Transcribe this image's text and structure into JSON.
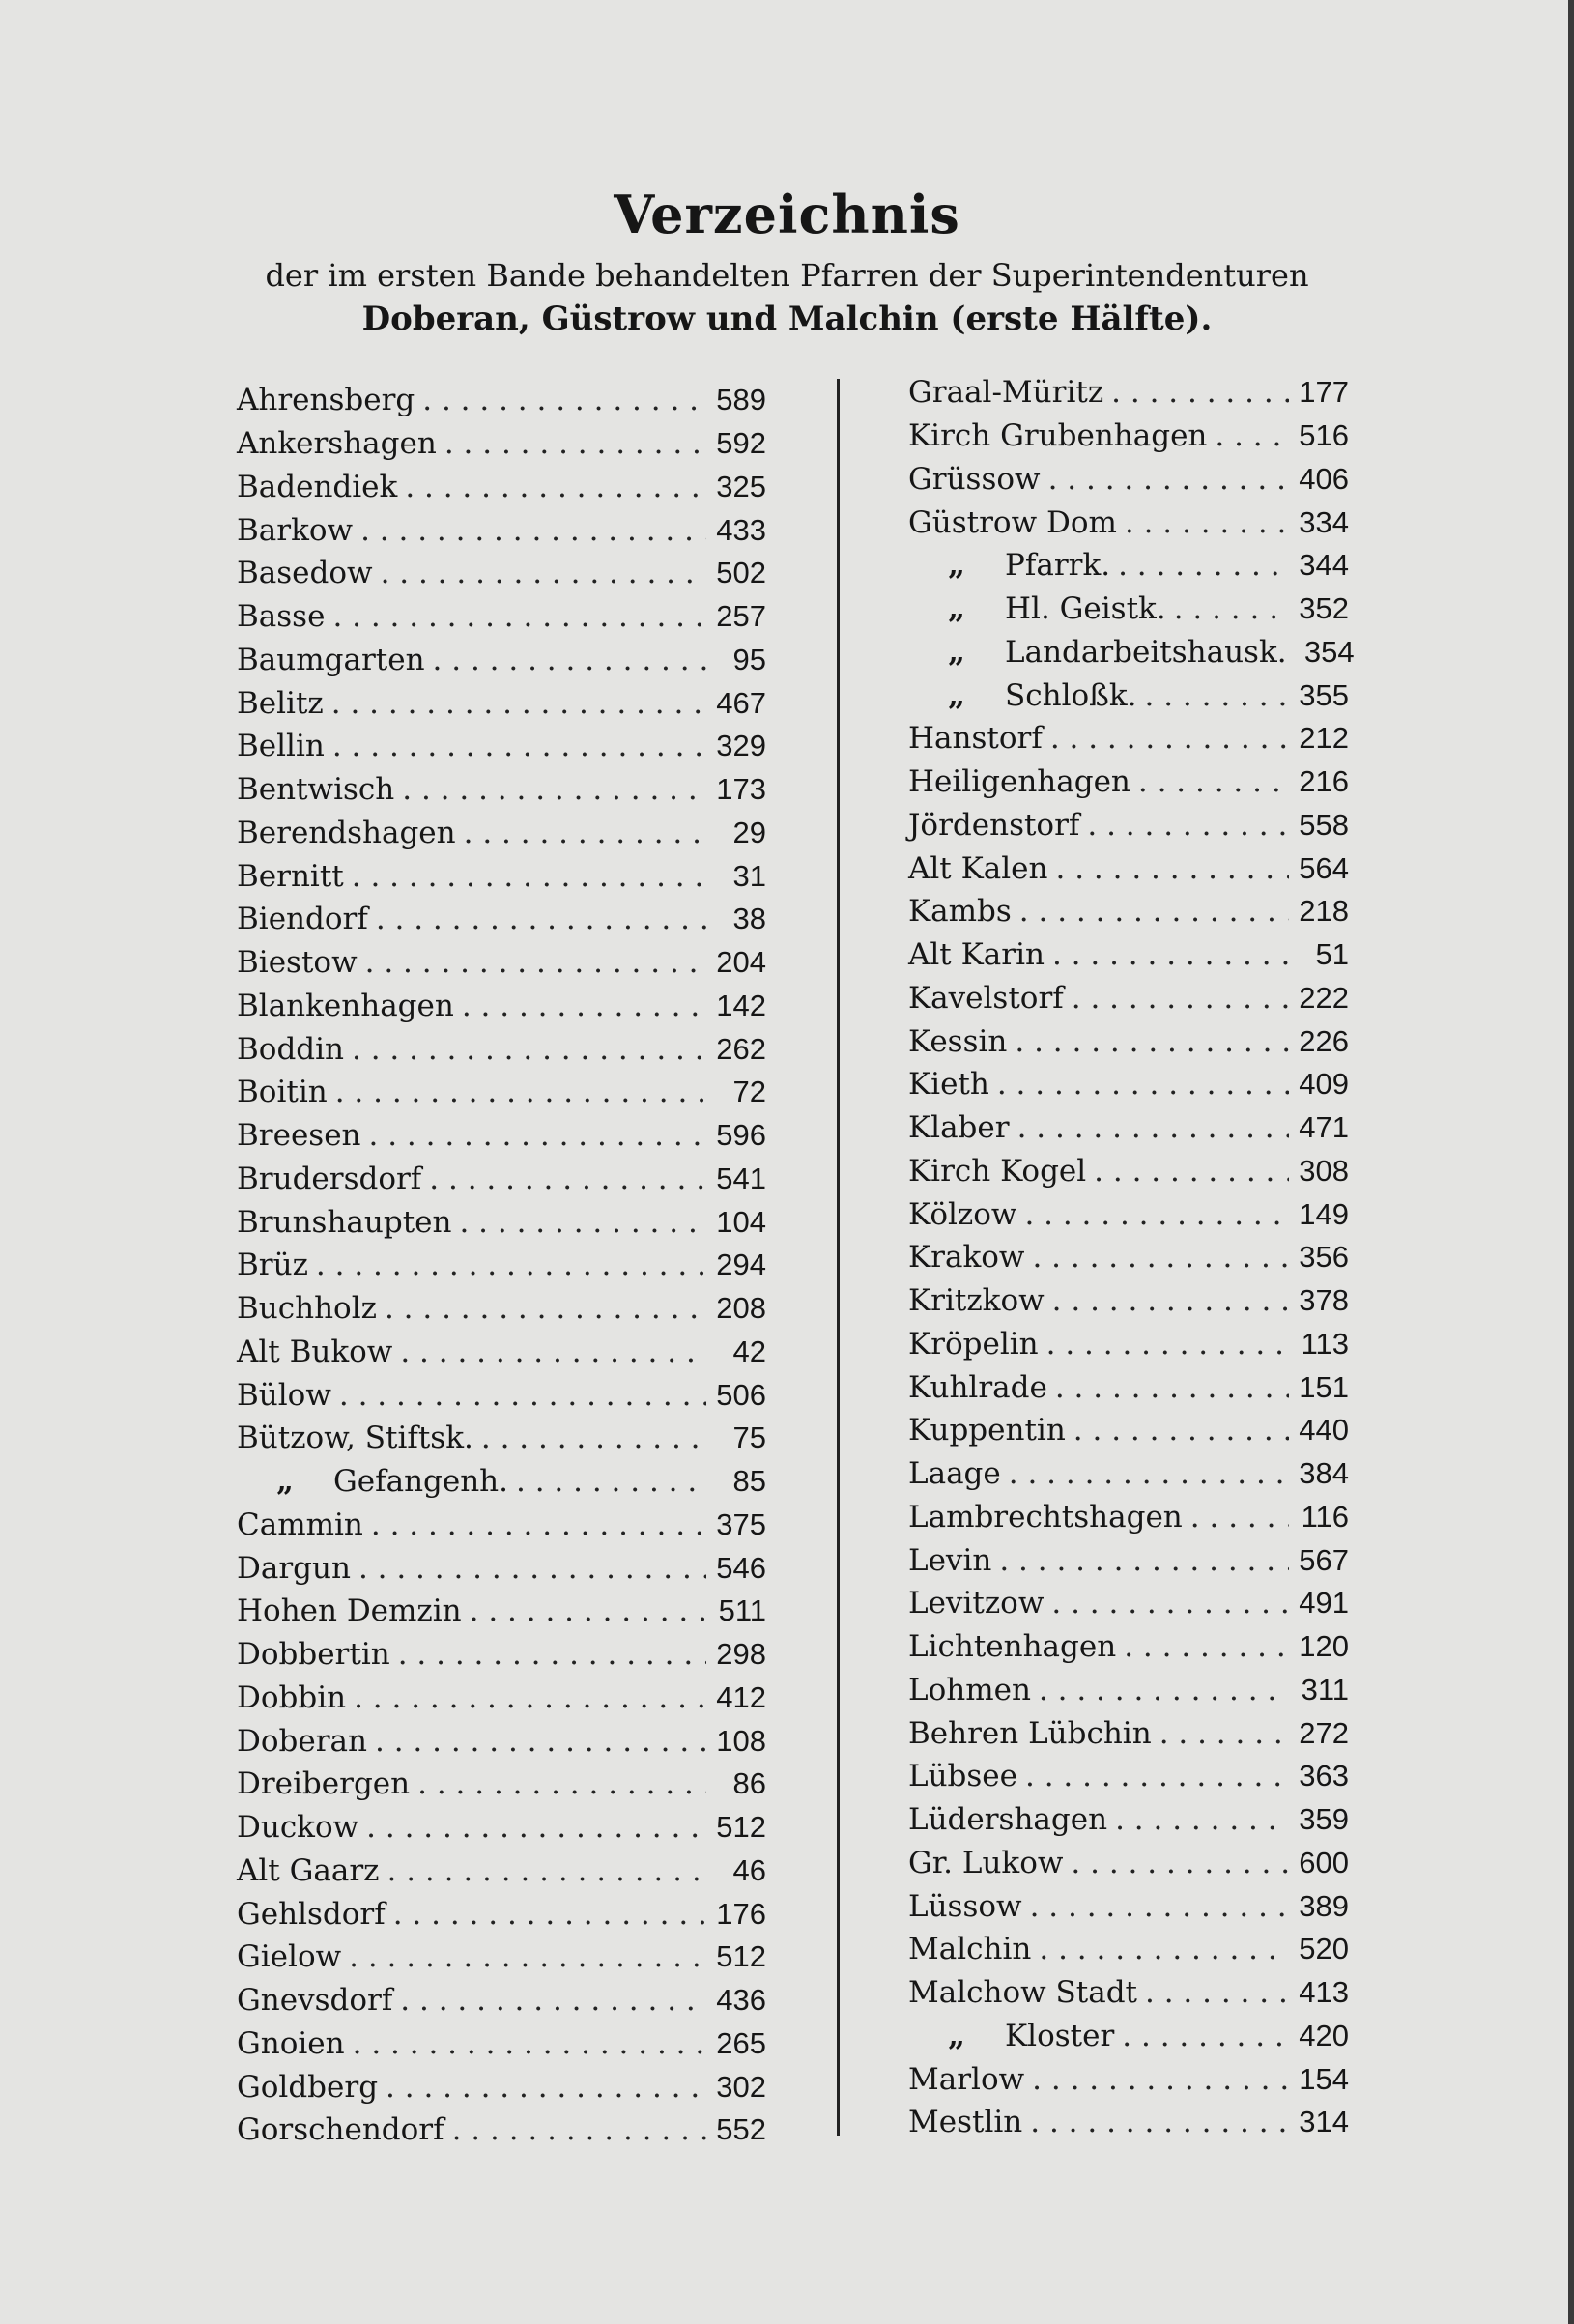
{
  "title": "Verzeichnis",
  "subtitle_line1": "der im ersten Bande behandelten Pfarren der Superintendenturen",
  "subtitle_line2": "Doberan, Güstrow und Malchin (erste Hälfte).",
  "ditto_mark": "„",
  "left_column": [
    {
      "name": "Ahrensberg",
      "page": "589"
    },
    {
      "name": "Ankershagen",
      "page": "592"
    },
    {
      "name": "Badendiek",
      "page": "325"
    },
    {
      "name": "Barkow",
      "page": "433"
    },
    {
      "name": "Basedow",
      "page": "502"
    },
    {
      "name": "Basse",
      "page": "257"
    },
    {
      "name": "Baumgarten",
      "page": "95"
    },
    {
      "name": "Belitz",
      "page": "467"
    },
    {
      "name": "Bellin",
      "page": "329"
    },
    {
      "name": "Bentwisch",
      "page": "173"
    },
    {
      "name": "Berendshagen",
      "page": "29"
    },
    {
      "name": "Bernitt",
      "page": "31"
    },
    {
      "name": "Biendorf",
      "page": "38"
    },
    {
      "name": "Biestow",
      "page": "204"
    },
    {
      "name": "Blankenhagen",
      "page": "142"
    },
    {
      "name": "Boddin",
      "page": "262"
    },
    {
      "name": "Boitin",
      "page": "72"
    },
    {
      "name": "Breesen",
      "page": "596"
    },
    {
      "name": "Brudersdorf",
      "page": "541"
    },
    {
      "name": "Brunshaupten",
      "page": "104"
    },
    {
      "name": "Brüz",
      "page": "294"
    },
    {
      "name": "Buchholz",
      "page": "208"
    },
    {
      "name": "Alt Bukow",
      "page": "42"
    },
    {
      "name": "Bülow",
      "page": "506"
    },
    {
      "name": "Bützow, Stiftsk.",
      "page": "75"
    },
    {
      "name": "Gefangenh.",
      "page": "85",
      "ditto": true
    },
    {
      "name": "Cammin",
      "page": "375"
    },
    {
      "name": "Dargun",
      "page": "546"
    },
    {
      "name": "Hohen Demzin",
      "page": "511"
    },
    {
      "name": "Dobbertin",
      "page": "298"
    },
    {
      "name": "Dobbin",
      "page": "412"
    },
    {
      "name": "Doberan",
      "page": "108"
    },
    {
      "name": "Dreibergen",
      "page": "86"
    },
    {
      "name": "Duckow",
      "page": "512"
    },
    {
      "name": "Alt Gaarz",
      "page": "46"
    },
    {
      "name": "Gehlsdorf",
      "page": "176"
    },
    {
      "name": "Gielow",
      "page": "512"
    },
    {
      "name": "Gnevsdorf",
      "page": "436"
    },
    {
      "name": "Gnoien",
      "page": "265"
    },
    {
      "name": "Goldberg",
      "page": "302"
    },
    {
      "name": "Gorschendorf",
      "page": "552"
    }
  ],
  "right_column": [
    {
      "name": "Graal-Müritz",
      "page": "177"
    },
    {
      "name": "Kirch Grubenhagen",
      "page": "516"
    },
    {
      "name": "Grüssow",
      "page": "406"
    },
    {
      "name": "Güstrow Dom",
      "page": "334"
    },
    {
      "name": "Pfarrk.",
      "page": "344",
      "ditto": true
    },
    {
      "name": "Hl. Geistk.",
      "page": "352",
      "ditto": true
    },
    {
      "name": "Landarbeitshausk.",
      "page": "354",
      "ditto": true
    },
    {
      "name": "Schloßk.",
      "page": "355",
      "ditto": true
    },
    {
      "name": "Hanstorf",
      "page": "212"
    },
    {
      "name": "Heiligenhagen",
      "page": "216"
    },
    {
      "name": "Jördenstorf",
      "page": "558"
    },
    {
      "name": "Alt Kalen",
      "page": "564"
    },
    {
      "name": "Kambs",
      "page": "218"
    },
    {
      "name": "Alt Karin",
      "page": "51"
    },
    {
      "name": "Kavelstorf",
      "page": "222"
    },
    {
      "name": "Kessin",
      "page": "226"
    },
    {
      "name": "Kieth",
      "page": "409"
    },
    {
      "name": "Klaber",
      "page": "471"
    },
    {
      "name": "Kirch Kogel",
      "page": "308"
    },
    {
      "name": "Kölzow",
      "page": "149"
    },
    {
      "name": "Krakow",
      "page": "356"
    },
    {
      "name": "Kritzkow",
      "page": "378"
    },
    {
      "name": "Kröpelin",
      "page": "113"
    },
    {
      "name": "Kuhlrade",
      "page": "151"
    },
    {
      "name": "Kuppentin",
      "page": "440"
    },
    {
      "name": "Laage",
      "page": "384"
    },
    {
      "name": "Lambrechtshagen",
      "page": "116"
    },
    {
      "name": "Levin",
      "page": "567"
    },
    {
      "name": "Levitzow",
      "page": "491"
    },
    {
      "name": "Lichtenhagen",
      "page": "120"
    },
    {
      "name": "Lohmen",
      "page": "311"
    },
    {
      "name": "Behren Lübchin",
      "page": "272"
    },
    {
      "name": "Lübsee",
      "page": "363"
    },
    {
      "name": "Lüdershagen",
      "page": "359"
    },
    {
      "name": "Gr. Lukow",
      "page": "600"
    },
    {
      "name": "Lüssow",
      "page": "389"
    },
    {
      "name": "Malchin",
      "page": "520"
    },
    {
      "name": "Malchow Stadt",
      "page": "413"
    },
    {
      "name": "Kloster",
      "page": "420",
      "ditto": true
    },
    {
      "name": "Marlow",
      "page": "154"
    },
    {
      "name": "Mestlin",
      "page": "314"
    }
  ]
}
